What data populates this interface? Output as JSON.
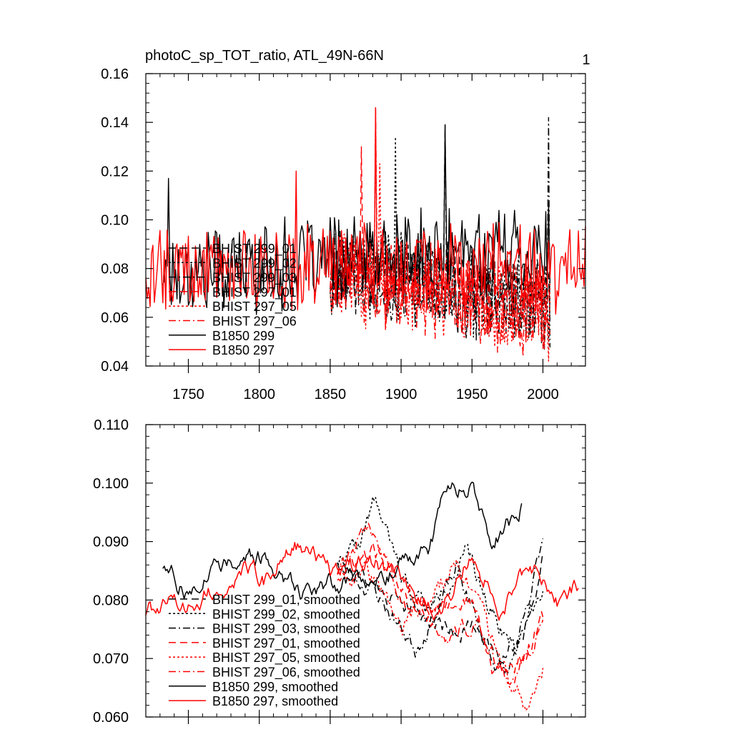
{
  "figure": {
    "title": "photoC_sp_TOT_ratio, ATL_49N-66N",
    "right_label": "1"
  },
  "chart_data": [
    {
      "type": "line",
      "panel": "top",
      "xlim": [
        1720,
        2030
      ],
      "ylim": [
        0.04,
        0.16
      ],
      "xticks": [
        1750,
        1800,
        1850,
        1900,
        1950,
        2000
      ],
      "xtick_labels": [
        "1750",
        "1800",
        "1850",
        "1900",
        "1950",
        "2000"
      ],
      "yticks": [
        0.04,
        0.06,
        0.08,
        0.1,
        0.12,
        0.14,
        0.16
      ],
      "ytick_labels": [
        "0.04",
        "0.06",
        "0.08",
        "0.10",
        "0.12",
        "0.14",
        "0.16"
      ],
      "legend_position": "middle-left",
      "series": [
        {
          "name": "BHIST 299_01",
          "color": "#000000",
          "dash": "long-dash",
          "start": 1850,
          "end": 2005,
          "base": 0.081,
          "amp": 0.016,
          "trend": -0.0001,
          "seed": 11,
          "peaks": [
            [
              1931,
              0.139
            ]
          ]
        },
        {
          "name": "BHIST 299_02",
          "color": "#000000",
          "dash": "dot",
          "start": 1850,
          "end": 2005,
          "base": 0.08,
          "amp": 0.016,
          "trend": -0.0001,
          "seed": 12,
          "peaks": [
            [
              1896,
              0.134
            ]
          ]
        },
        {
          "name": "BHIST 299_03",
          "color": "#000000",
          "dash": "dash-dot",
          "start": 1850,
          "end": 2005,
          "base": 0.08,
          "amp": 0.016,
          "trend": -0.0001,
          "seed": 13,
          "peaks": [
            [
              2004,
              0.142
            ]
          ]
        },
        {
          "name": "BHIST 297_01",
          "color": "#ff0000",
          "dash": "long-dash",
          "start": 1850,
          "end": 2005,
          "base": 0.079,
          "amp": 0.016,
          "trend": -0.0001,
          "seed": 14,
          "peaks": [
            [
              1872,
              0.13
            ]
          ]
        },
        {
          "name": "BHIST 297_05",
          "color": "#ff0000",
          "dash": "dot",
          "start": 1850,
          "end": 2005,
          "base": 0.078,
          "amp": 0.016,
          "trend": -0.00012,
          "seed": 15,
          "peaks": [
            [
              1885,
              0.123
            ]
          ]
        },
        {
          "name": "BHIST 297_06",
          "color": "#ff0000",
          "dash": "dash-dot",
          "start": 1850,
          "end": 2005,
          "base": 0.078,
          "amp": 0.016,
          "trend": -0.00012,
          "seed": 16,
          "peaks": [
            [
              1882,
              0.146
            ]
          ]
        },
        {
          "name": "B1850 299",
          "color": "#000000",
          "dash": "solid",
          "start": 1732,
          "end": 2005,
          "base": 0.083,
          "amp": 0.016,
          "trend": 4e-05,
          "seed": 17,
          "peaks": [
            [
              1736,
              0.117
            ],
            [
              1931,
              0.139
            ]
          ]
        },
        {
          "name": "B1850 297",
          "color": "#ff0000",
          "dash": "solid",
          "start": 1720,
          "end": 2030,
          "base": 0.08,
          "amp": 0.015,
          "trend": 0.0,
          "seed": 18,
          "peaks": [
            [
              1826,
              0.12
            ],
            [
              1882,
              0.146
            ]
          ]
        }
      ]
    },
    {
      "type": "line",
      "panel": "bottom",
      "xlim": [
        1720,
        2030
      ],
      "ylim": [
        0.06,
        0.11
      ],
      "xticks": [
        1750,
        1800,
        1850,
        1900,
        1950,
        2000
      ],
      "yticks": [
        0.06,
        0.07,
        0.08,
        0.09,
        0.1,
        0.11
      ],
      "ytick_labels": [
        "0.060",
        "0.070",
        "0.080",
        "0.090",
        "0.100",
        "0.110"
      ],
      "legend_position": "bottom-left",
      "series": [
        {
          "name": "BHIST 299_01, smoothed",
          "color": "#000000",
          "dash": "long-dash",
          "start": 1855,
          "end": 2000,
          "knots": [
            [
              1855,
              0.087
            ],
            [
              1880,
              0.083
            ],
            [
              1905,
              0.079
            ],
            [
              1925,
              0.076
            ],
            [
              1950,
              0.075
            ],
            [
              1970,
              0.071
            ],
            [
              1985,
              0.074
            ],
            [
              2000,
              0.087
            ]
          ],
          "seed": 21
        },
        {
          "name": "BHIST 299_02, smoothed",
          "color": "#000000",
          "dash": "dot",
          "start": 1855,
          "end": 2000,
          "knots": [
            [
              1855,
              0.087
            ],
            [
              1870,
              0.089
            ],
            [
              1882,
              0.097
            ],
            [
              1900,
              0.084
            ],
            [
              1920,
              0.078
            ],
            [
              1945,
              0.088
            ],
            [
              1960,
              0.08
            ],
            [
              1980,
              0.072
            ],
            [
              2000,
              0.083
            ]
          ],
          "seed": 22
        },
        {
          "name": "BHIST 299_03, smoothed",
          "color": "#000000",
          "dash": "dash-dot",
          "start": 1855,
          "end": 2000,
          "knots": [
            [
              1855,
              0.086
            ],
            [
              1880,
              0.082
            ],
            [
              1910,
              0.072
            ],
            [
              1940,
              0.085
            ],
            [
              1960,
              0.072
            ],
            [
              1975,
              0.067
            ],
            [
              1990,
              0.078
            ],
            [
              2000,
              0.091
            ]
          ],
          "seed": 23
        },
        {
          "name": "BHIST 297_01, smoothed",
          "color": "#ff0000",
          "dash": "long-dash",
          "start": 1855,
          "end": 2000,
          "knots": [
            [
              1855,
              0.084
            ],
            [
              1880,
              0.088
            ],
            [
              1900,
              0.083
            ],
            [
              1925,
              0.079
            ],
            [
              1950,
              0.08
            ],
            [
              1965,
              0.067
            ],
            [
              1985,
              0.07
            ],
            [
              2000,
              0.077
            ]
          ],
          "seed": 24
        },
        {
          "name": "BHIST 297_05, smoothed",
          "color": "#ff0000",
          "dash": "dot",
          "start": 1855,
          "end": 2000,
          "knots": [
            [
              1855,
              0.085
            ],
            [
              1875,
              0.085
            ],
            [
              1900,
              0.076
            ],
            [
              1920,
              0.079
            ],
            [
              1940,
              0.087
            ],
            [
              1960,
              0.075
            ],
            [
              1980,
              0.064
            ],
            [
              1990,
              0.062
            ],
            [
              2000,
              0.069
            ]
          ],
          "seed": 25
        },
        {
          "name": "BHIST 297_06, smoothed",
          "color": "#ff0000",
          "dash": "dash-dot",
          "start": 1855,
          "end": 2000,
          "knots": [
            [
              1855,
              0.085
            ],
            [
              1878,
              0.093
            ],
            [
              1900,
              0.081
            ],
            [
              1930,
              0.074
            ],
            [
              1955,
              0.076
            ],
            [
              1975,
              0.066
            ],
            [
              1990,
              0.071
            ],
            [
              2000,
              0.077
            ]
          ],
          "seed": 26
        },
        {
          "name": "B1850 299, smoothed",
          "color": "#000000",
          "dash": "solid",
          "start": 1732,
          "end": 1985,
          "knots": [
            [
              1732,
              0.086
            ],
            [
              1750,
              0.081
            ],
            [
              1770,
              0.087
            ],
            [
              1800,
              0.087
            ],
            [
              1830,
              0.082
            ],
            [
              1860,
              0.083
            ],
            [
              1890,
              0.085
            ],
            [
              1920,
              0.089
            ],
            [
              1932,
              0.099
            ],
            [
              1950,
              0.099
            ],
            [
              1965,
              0.089
            ],
            [
              1975,
              0.093
            ],
            [
              1985,
              0.096
            ]
          ],
          "seed": 27
        },
        {
          "name": "B1850 297, smoothed",
          "color": "#ff0000",
          "dash": "solid",
          "start": 1720,
          "end": 2025,
          "knots": [
            [
              1720,
              0.078
            ],
            [
              1745,
              0.079
            ],
            [
              1765,
              0.081
            ],
            [
              1790,
              0.085
            ],
            [
              1805,
              0.083
            ],
            [
              1825,
              0.091
            ],
            [
              1850,
              0.084
            ],
            [
              1880,
              0.087
            ],
            [
              1905,
              0.083
            ],
            [
              1930,
              0.078
            ],
            [
              1950,
              0.088
            ],
            [
              1970,
              0.079
            ],
            [
              1990,
              0.086
            ],
            [
              2010,
              0.08
            ],
            [
              2025,
              0.083
            ]
          ],
          "seed": 28
        }
      ]
    }
  ]
}
